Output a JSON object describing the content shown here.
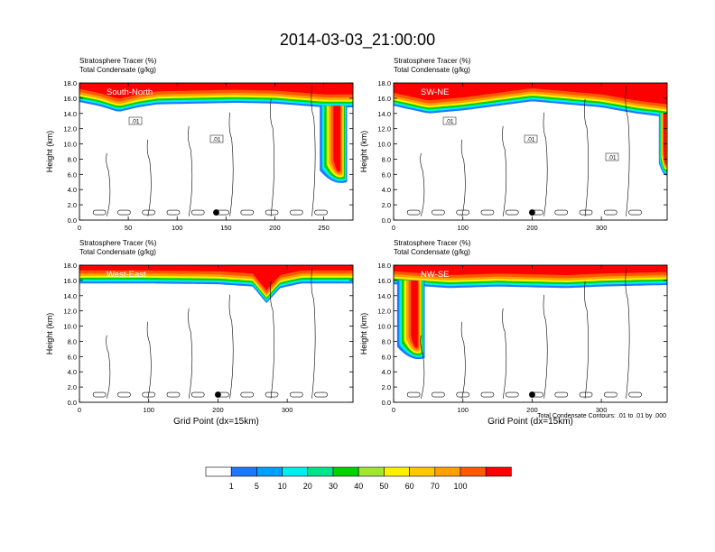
{
  "figure": {
    "title": "2014-03-03_21:00:00",
    "footnote": "Total Condensate Contours: .01 to .01 by .000"
  },
  "colorbar": {
    "levels": [
      "1",
      "5",
      "10",
      "20",
      "30",
      "40",
      "50",
      "60",
      "70",
      "100"
    ],
    "colors": [
      "#ffffff",
      "#1e78ff",
      "#00a0ff",
      "#00eeee",
      "#00e48c",
      "#00d200",
      "#a0e632",
      "#fff000",
      "#ffc800",
      "#ffa000",
      "#ff5a00",
      "#ff0000"
    ]
  },
  "chart_data": [
    {
      "type": "heatmap",
      "panel_label": "South-North",
      "line1": "Stratosphere Tracer   (%)",
      "line2": "Total Condensate   (g/kg)",
      "ylabel": "Height (km)",
      "xlabel": "",
      "xlim": [
        0,
        280
      ],
      "ylim": [
        0,
        18
      ],
      "x_ticks": [
        "0",
        "50",
        "100",
        "150",
        "200",
        "250"
      ],
      "y_ticks": [
        "0.0",
        "2.0",
        "4.0",
        "6.0",
        "8.0",
        "10.0",
        "12.0",
        "14.0",
        "16.0",
        "18.0"
      ],
      "contour_labels": [
        ".01",
        ".01"
      ],
      "marker_x": 140,
      "marker_y": 1.0,
      "tropopause_base": [
        [
          0,
          15.5
        ],
        [
          20,
          15.0
        ],
        [
          40,
          14.2
        ],
        [
          60,
          14.8
        ],
        [
          80,
          15.2
        ],
        [
          120,
          15.3
        ],
        [
          160,
          15.4
        ],
        [
          200,
          15.3
        ],
        [
          230,
          15.0
        ],
        [
          250,
          14.8
        ],
        [
          280,
          14.8
        ]
      ],
      "intrusion": {
        "x_center": 260,
        "bottom": 5.0,
        "top": 15.0,
        "width": 28
      }
    },
    {
      "type": "heatmap",
      "panel_label": "SW-NE",
      "line1": "Stratosphere Tracer   (%)",
      "line2": "Total Condensate   (g/kg)",
      "ylabel": "Height (km)",
      "xlabel": "",
      "xlim": [
        0,
        395
      ],
      "ylim": [
        0,
        18
      ],
      "x_ticks": [
        "0",
        "100",
        "200",
        "300"
      ],
      "y_ticks": [
        "0.0",
        "2.0",
        "4.0",
        "6.0",
        "8.0",
        "10.0",
        "12.0",
        "14.0",
        "16.0",
        "18.0"
      ],
      "contour_labels": [
        ".01",
        ".01",
        ".01"
      ],
      "marker_x": 200,
      "marker_y": 1.0,
      "tropopause_base": [
        [
          0,
          15.0
        ],
        [
          50,
          14.0
        ],
        [
          100,
          14.4
        ],
        [
          150,
          15.0
        ],
        [
          200,
          15.6
        ],
        [
          250,
          15.2
        ],
        [
          300,
          14.8
        ],
        [
          350,
          14.0
        ],
        [
          395,
          13.5
        ]
      ],
      "intrusion": {
        "x_center": 390,
        "bottom": 6.0,
        "top": 14.0,
        "width": 14
      }
    },
    {
      "type": "heatmap",
      "panel_label": "West-East",
      "line1": "Stratosphere Tracer   (%)",
      "line2": "Total Condensate   (g/kg)",
      "ylabel": "Height (km)",
      "xlabel": "Grid Point (dx=15km)",
      "xlim": [
        0,
        395
      ],
      "ylim": [
        0,
        18
      ],
      "x_ticks": [
        "0",
        "100",
        "200",
        "300"
      ],
      "y_ticks": [
        "0.0",
        "2.0",
        "4.0",
        "6.0",
        "8.0",
        "10.0",
        "12.0",
        "14.0",
        "16.0",
        "18.0"
      ],
      "contour_labels": [],
      "marker_x": 200,
      "marker_y": 1.0,
      "tropopause_base": [
        [
          0,
          15.6
        ],
        [
          100,
          15.6
        ],
        [
          200,
          15.5
        ],
        [
          250,
          15.2
        ],
        [
          270,
          13.0
        ],
        [
          290,
          15.0
        ],
        [
          320,
          15.6
        ],
        [
          395,
          15.6
        ]
      ],
      "intrusion": null
    },
    {
      "type": "heatmap",
      "panel_label": "NW-SE",
      "line1": "Stratosphere Tracer   (%)",
      "line2": "Total Condensate   (g/kg)",
      "ylabel": "Height (km)",
      "xlabel": "Grid Point (dx=15km)",
      "xlim": [
        0,
        395
      ],
      "ylim": [
        0,
        18
      ],
      "x_ticks": [
        "0",
        "100",
        "200",
        "300"
      ],
      "y_ticks": [
        "0.0",
        "2.0",
        "4.0",
        "6.0",
        "8.0",
        "10.0",
        "12.0",
        "14.0",
        "16.0",
        "18.0"
      ],
      "contour_labels": [],
      "marker_x": 200,
      "marker_y": 1.0,
      "tropopause_base": [
        [
          0,
          15.5
        ],
        [
          80,
          15.0
        ],
        [
          150,
          15.2
        ],
        [
          250,
          15.0
        ],
        [
          300,
          15.2
        ],
        [
          395,
          15.4
        ]
      ],
      "intrusion": {
        "x_center": 25,
        "bottom": 5.8,
        "top": 16.0,
        "width": 40
      }
    }
  ]
}
